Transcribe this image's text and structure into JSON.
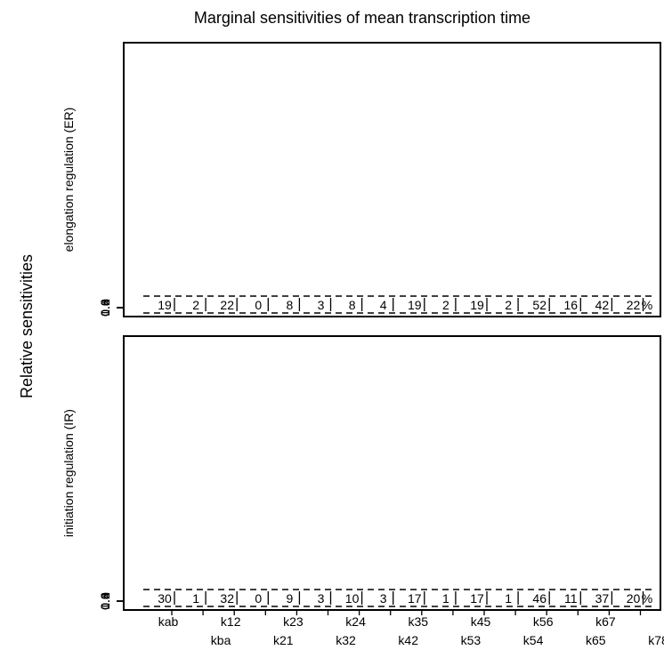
{
  "chart_data": {
    "type": "bar",
    "title": "Marginal sensitivities of mean transcription time",
    "ylabel": "Relative sensitivities",
    "ylim": [
      0,
      1
    ],
    "yticks": [
      "0.0",
      "0.2",
      "0.4",
      "0.6",
      "0.8",
      "1.0"
    ],
    "percent_symbol": "%",
    "categories": [
      "kab",
      "kba",
      "k12",
      "k21",
      "k23",
      "k32",
      "k24",
      "k42",
      "k35",
      "k53",
      "k45",
      "k54",
      "k56",
      "k65",
      "k67",
      "k78"
    ],
    "colors": [
      "#5ab4ea",
      "#5ab4ea",
      "#2b8fe6",
      "#2b8fe6",
      "#8fe06a",
      "#8fe06a",
      "#2fd82f",
      "#2fd82f",
      "#f26a6a",
      "#f26a6a",
      "#ee1c24",
      "#ee1c24",
      "#fbac5a",
      "#fbc080",
      "#ff8a10",
      "#bf66e8"
    ],
    "panels": [
      {
        "name": "elongation regulation (ER)",
        "percentages": [
          "19",
          "2",
          "22",
          "0",
          "8",
          "3",
          "8",
          "4",
          "19",
          "2",
          "19",
          "2",
          "52",
          "16",
          "42",
          "22"
        ]
      },
      {
        "name": "initiation regulation (IR)",
        "percentages": [
          "30",
          "1",
          "32",
          "0",
          "9",
          "3",
          "10",
          "3",
          "17",
          "1",
          "17",
          "1",
          "46",
          "11",
          "37",
          "20"
        ]
      }
    ]
  }
}
